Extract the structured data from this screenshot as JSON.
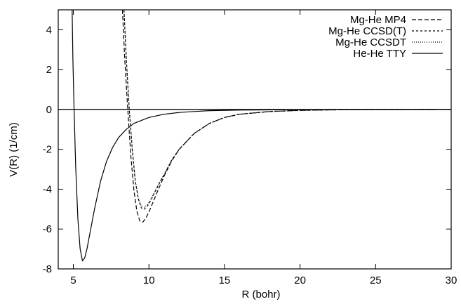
{
  "chart_data": {
    "type": "line",
    "xlabel": "R (bohr)",
    "ylabel": "V(R) (1/cm)",
    "xlim": [
      4,
      30
    ],
    "ylim": [
      -8,
      5
    ],
    "xticks": [
      "5",
      "10",
      "15",
      "20",
      "25",
      "30"
    ],
    "yticks": [
      "4",
      "2",
      "0",
      "-2",
      "-4",
      "-6",
      "-8"
    ],
    "zero_line": true,
    "legend_position": "top-right",
    "series": [
      {
        "name": "Mg-He MP4",
        "dash": "dashed",
        "x": [
          8.25,
          8.4,
          8.6,
          8.8,
          9.0,
          9.2,
          9.4,
          9.6,
          9.8,
          10.0,
          10.3,
          10.6,
          11.0,
          11.5,
          12.0,
          13.0,
          14.0,
          15.0,
          16.0,
          18.0,
          20.0,
          22.0,
          25.0,
          30.0
        ],
        "y": [
          5.0,
          2.5,
          0.0,
          -2.3,
          -4.0,
          -5.1,
          -5.6,
          -5.65,
          -5.45,
          -5.15,
          -4.6,
          -4.05,
          -3.35,
          -2.6,
          -2.0,
          -1.2,
          -0.7,
          -0.4,
          -0.24,
          -0.1,
          -0.045,
          -0.02,
          -0.01,
          0.0
        ]
      },
      {
        "name": "Mg-He CCSD(T)",
        "dash": "dotted",
        "x": [
          8.35,
          8.5,
          8.7,
          8.9,
          9.1,
          9.3,
          9.5,
          9.7,
          9.9,
          10.1,
          10.4,
          10.7,
          11.0,
          11.5,
          12.0,
          13.0,
          14.0,
          15.0,
          16.0,
          18.0,
          20.0,
          22.0,
          25.0,
          30.0
        ],
        "y": [
          5.0,
          2.6,
          0.0,
          -2.0,
          -3.6,
          -4.5,
          -4.95,
          -5.0,
          -4.85,
          -4.6,
          -4.15,
          -3.7,
          -3.3,
          -2.55,
          -2.0,
          -1.2,
          -0.7,
          -0.4,
          -0.24,
          -0.1,
          -0.045,
          -0.02,
          -0.01,
          0.0
        ]
      },
      {
        "name": "Mg-He CCSDT",
        "dash": "fine-dotted",
        "x": [
          8.35,
          8.5,
          8.7,
          8.9,
          9.1,
          9.3,
          9.5,
          9.7,
          9.9,
          10.1,
          10.4,
          10.7,
          11.0,
          11.5,
          12.0,
          13.0,
          14.0,
          15.0,
          16.0,
          18.0,
          20.0,
          22.0,
          25.0,
          30.0
        ],
        "y": [
          5.0,
          2.6,
          0.0,
          -2.0,
          -3.55,
          -4.45,
          -4.85,
          -4.9,
          -4.78,
          -4.55,
          -4.1,
          -3.65,
          -3.25,
          -2.55,
          -2.0,
          -1.2,
          -0.7,
          -0.4,
          -0.24,
          -0.1,
          -0.045,
          -0.02,
          -0.01,
          0.0
        ]
      },
      {
        "name": "He-He TTY",
        "dash": "solid",
        "x": [
          4.92,
          4.97,
          5.05,
          5.15,
          5.3,
          5.45,
          5.6,
          5.75,
          5.9,
          6.1,
          6.4,
          6.8,
          7.2,
          7.6,
          8.0,
          8.5,
          9.0,
          10.0,
          11.0,
          12.0,
          13.0,
          14.0,
          16.0,
          20.0,
          30.0
        ],
        "y": [
          5.0,
          2.5,
          0.0,
          -2.8,
          -5.5,
          -7.0,
          -7.6,
          -7.45,
          -7.0,
          -6.2,
          -5.0,
          -3.6,
          -2.6,
          -1.9,
          -1.4,
          -1.0,
          -0.7,
          -0.4,
          -0.24,
          -0.15,
          -0.1,
          -0.06,
          -0.03,
          -0.01,
          0.0
        ]
      }
    ]
  }
}
